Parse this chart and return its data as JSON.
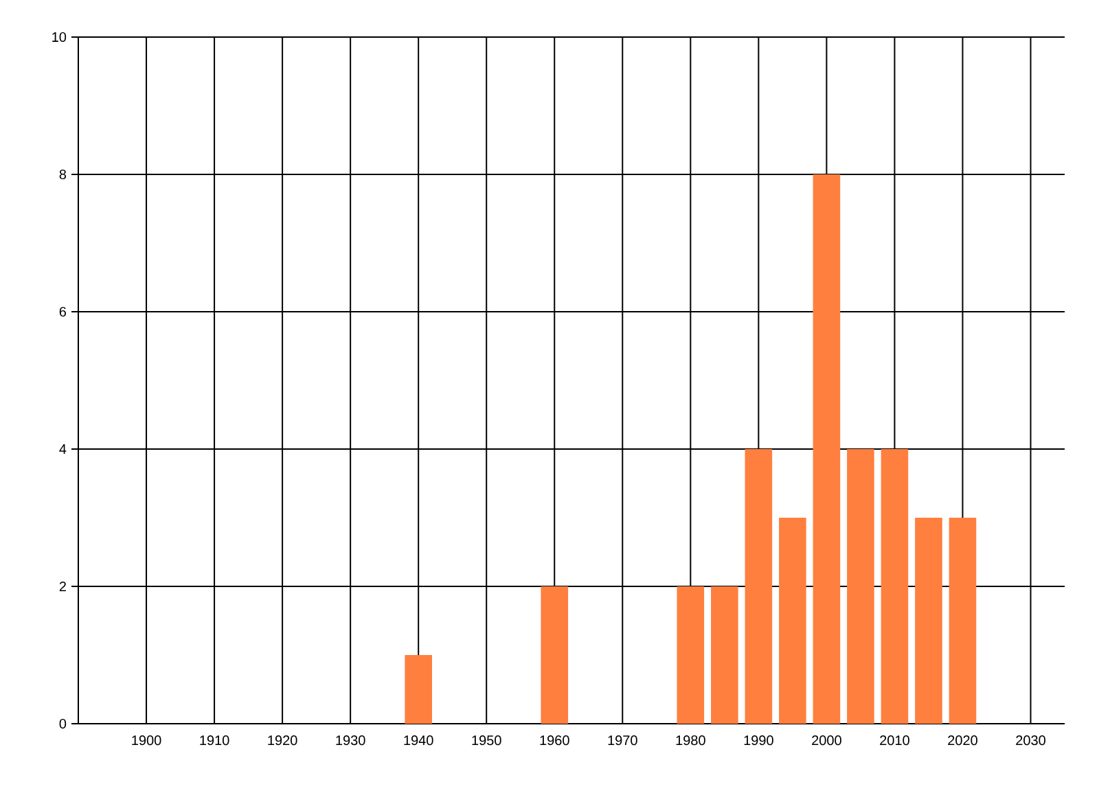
{
  "chart_data": {
    "type": "bar",
    "x": [
      1940,
      1960,
      1980,
      1985,
      1990,
      1995,
      2000,
      2005,
      2010,
      2015,
      2020
    ],
    "values": [
      1,
      2,
      2,
      2,
      4,
      3,
      8,
      4,
      4,
      3,
      3
    ],
    "color": "#ff7f3f",
    "xlim": [
      1890,
      2035
    ],
    "ylim": [
      0,
      10
    ],
    "xticks": [
      1900,
      1910,
      1920,
      1930,
      1940,
      1950,
      1960,
      1970,
      1980,
      1990,
      2000,
      2010,
      2020,
      2030
    ],
    "yticks": [
      0,
      2,
      4,
      6,
      8,
      10
    ],
    "grid": true
  }
}
